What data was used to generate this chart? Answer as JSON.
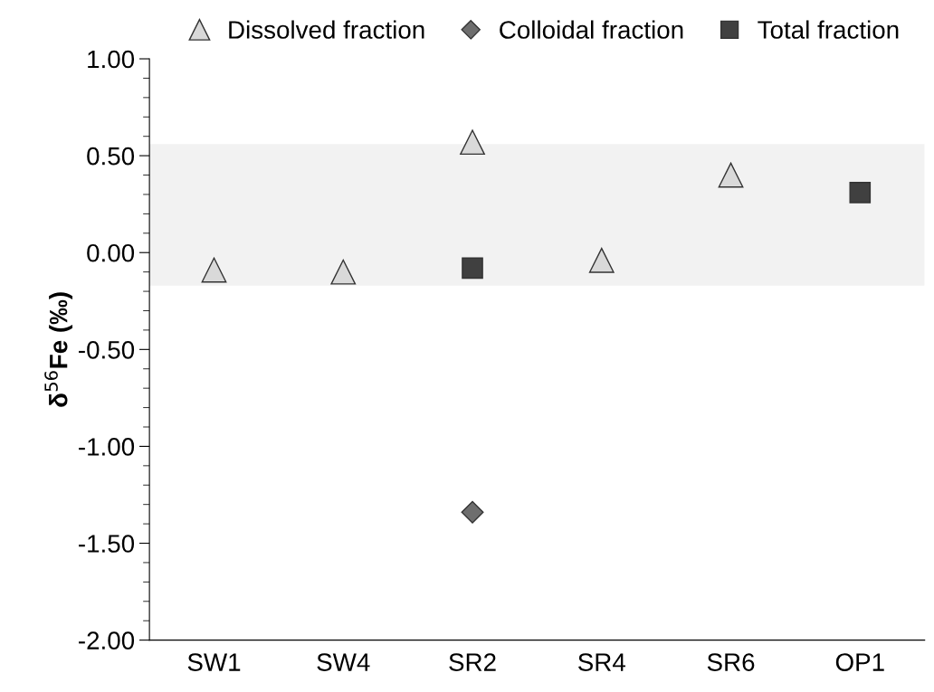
{
  "chart_data": {
    "type": "scatter",
    "ylabel": "δ$^{56}$Fe (‰)",
    "categories": [
      "SW1",
      "SW4",
      "SR2",
      "SR4",
      "SR6",
      "OP1"
    ],
    "series": [
      {
        "name": "Dissolved fraction",
        "color": "#d9d9d9",
        "marker": "triangle",
        "values": [
          -0.09,
          -0.1,
          0.57,
          -0.04,
          0.4,
          null
        ]
      },
      {
        "name": "Colloidal fraction",
        "color": "#6e6e6e",
        "marker": "diamond",
        "values": [
          null,
          null,
          -1.34,
          null,
          null,
          null
        ]
      },
      {
        "name": "Total fraction",
        "color": "#404040",
        "marker": "square",
        "values": [
          null,
          null,
          -0.08,
          null,
          null,
          0.31
        ]
      }
    ],
    "bands": [
      {
        "axis": "y",
        "from": -0.17,
        "to": 0.56,
        "color": "#f2f2f2"
      }
    ],
    "ylim": [
      -2.0,
      1.0
    ],
    "yticks": [
      {
        "value": -2.0,
        "label": "-2.00"
      },
      {
        "value": -1.5,
        "label": "-1.50"
      },
      {
        "value": -1.0,
        "label": "-1.00"
      },
      {
        "value": -0.5,
        "label": "-0.50"
      },
      {
        "value": 0.0,
        "label": "0.00"
      },
      {
        "value": 0.5,
        "label": "0.50"
      },
      {
        "value": 1.0,
        "label": "1.00"
      }
    ],
    "grid": false,
    "legend": "top"
  }
}
